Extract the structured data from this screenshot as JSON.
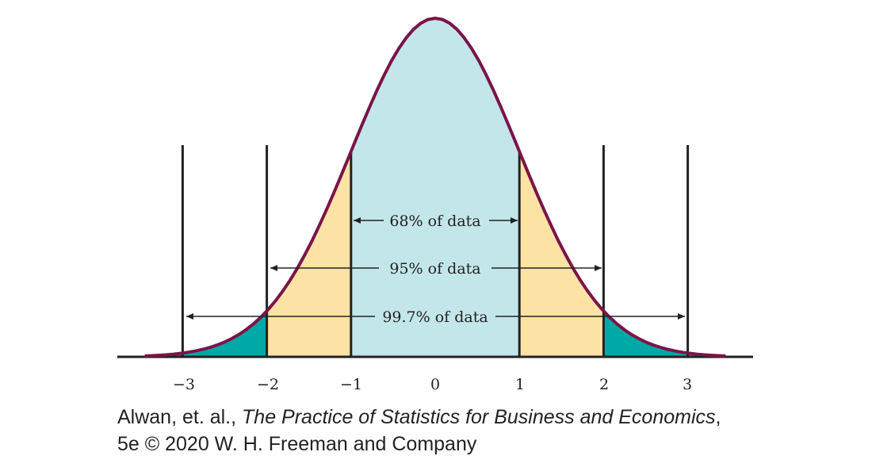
{
  "figure": {
    "tick_labels": [
      "−3",
      "−2",
      "−1",
      "0",
      "1",
      "2",
      "3"
    ],
    "annotations": [
      {
        "label": "68% of data"
      },
      {
        "label": "95% of data"
      },
      {
        "label": "99.7% of data"
      }
    ],
    "colors": {
      "curve": "#7a1449",
      "center_fill": "#c3e6ea",
      "one_to_two_fill": "#fde2a6",
      "tail_fill": "#00a8a6",
      "axis": "#222222"
    }
  },
  "caption": {
    "authors": "Alwan, et. al.,",
    "book_title": "The Practice of Statistics for Business and Economics",
    "line1_end": ",",
    "line2": "5e © 2020 W. H. Freeman and Company"
  }
}
